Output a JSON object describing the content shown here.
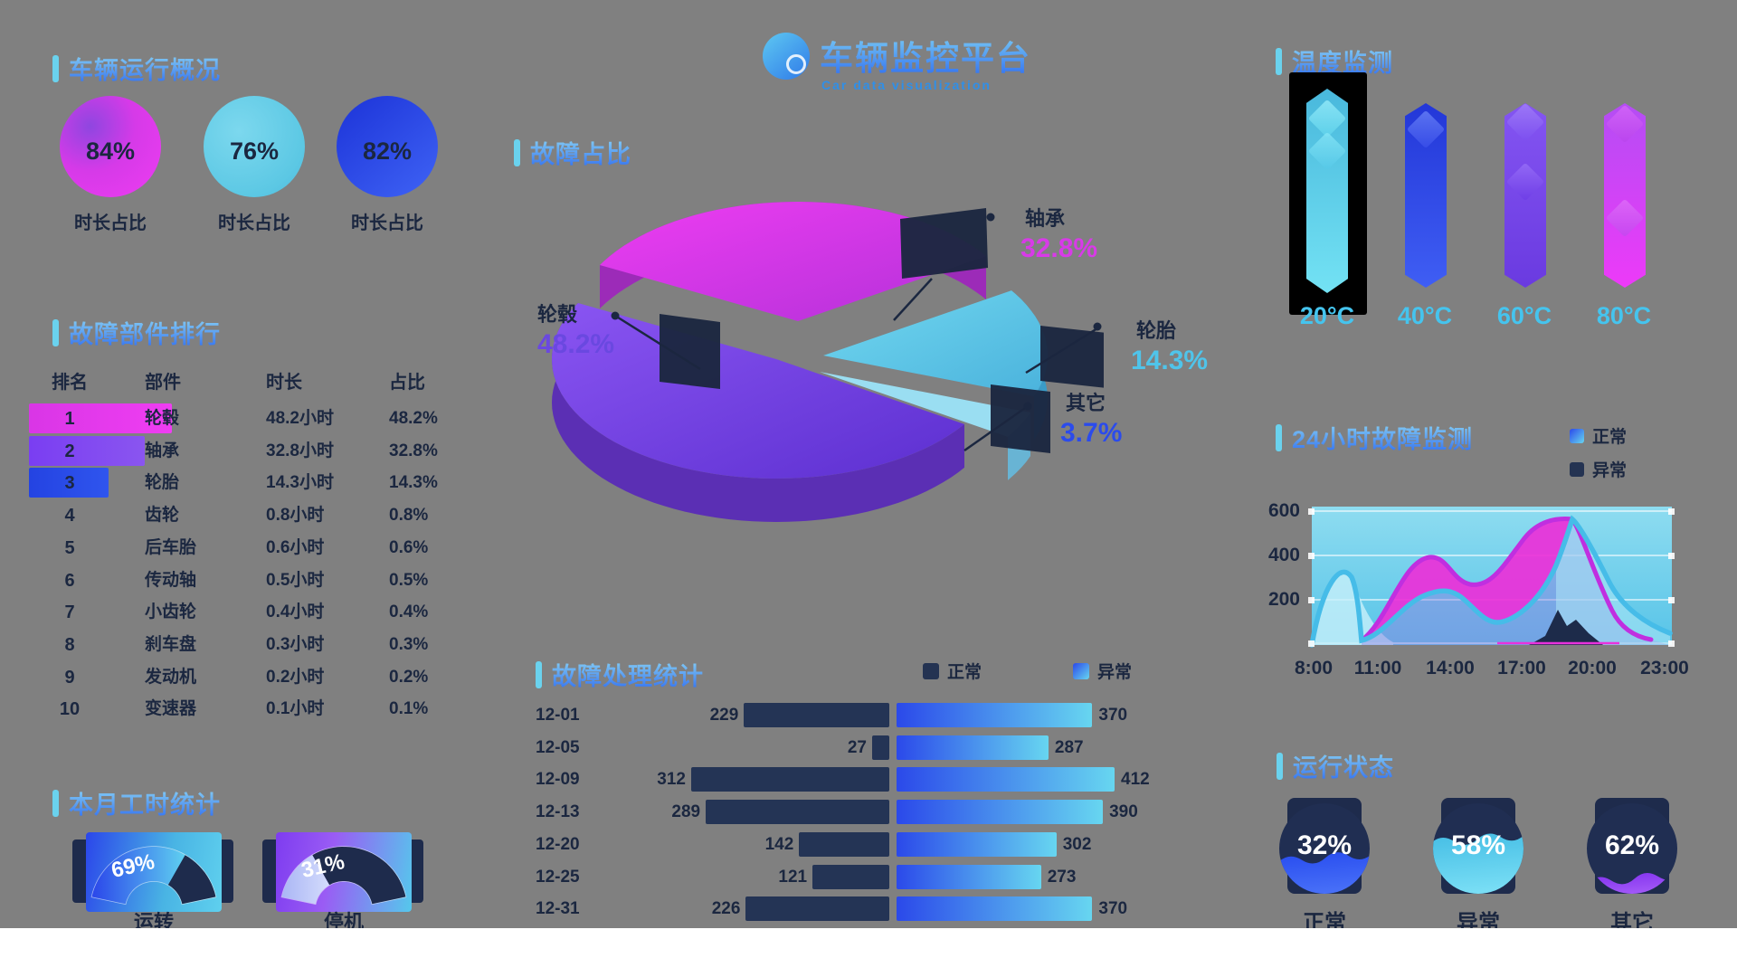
{
  "palette": {
    "bg": "#808080",
    "navy": "#1b2740",
    "cyan": "#5bc9e8",
    "blue": "#2b4bec",
    "purple": "#7a4be0",
    "magenta": "#e13ae8",
    "title_gradient_top": "#8ed8f4",
    "title_gradient_bottom": "#2e6cf0"
  },
  "header": {
    "title": "车辆监控平台",
    "subtitle": "Car data visualization",
    "logo": "car-platform-logo"
  },
  "sections": {
    "overview": "车辆运行概况",
    "rank": "故障部件排行",
    "hours": "本月工时统计",
    "pie": "故障占比",
    "defects": "故障处理统计",
    "temp": "温度监测",
    "trend": "24小时故障监测",
    "status": "运行状态"
  },
  "overview_stats": {
    "items": [
      {
        "value": "84%",
        "label": "时长占比"
      },
      {
        "value": "76%",
        "label": "时长占比"
      },
      {
        "value": "82%",
        "label": "时长占比"
      }
    ]
  },
  "rank_table": {
    "headers": [
      "排名",
      "部件",
      "时长",
      "占比"
    ],
    "rows": [
      {
        "rank": "1",
        "name": "轮毂",
        "time": "48.2小时",
        "pct": "48.2%"
      },
      {
        "rank": "2",
        "name": "轴承",
        "time": "32.8小时",
        "pct": "32.8%"
      },
      {
        "rank": "3",
        "name": "轮胎",
        "time": "14.3小时",
        "pct": "14.3%"
      },
      {
        "rank": "4",
        "name": "齿轮",
        "time": "0.8小时",
        "pct": "0.8%"
      },
      {
        "rank": "5",
        "name": "后车胎",
        "time": "0.6小时",
        "pct": "0.6%"
      },
      {
        "rank": "6",
        "name": "传动轴",
        "time": "0.5小时",
        "pct": "0.5%"
      },
      {
        "rank": "7",
        "name": "小齿轮",
        "time": "0.4小时",
        "pct": "0.4%"
      },
      {
        "rank": "8",
        "name": "刹车盘",
        "time": "0.3小时",
        "pct": "0.3%"
      },
      {
        "rank": "9",
        "name": "发动机",
        "time": "0.2小时",
        "pct": "0.2%"
      },
      {
        "rank": "10",
        "name": "变速器",
        "time": "0.1小时",
        "pct": "0.1%"
      }
    ]
  },
  "hours_gauges": [
    {
      "pct": "69%",
      "label": "运转"
    },
    {
      "pct": "31%",
      "label": "停机"
    }
  ],
  "pie_labels": [
    {
      "name": "轮毂",
      "pct": "48.2%",
      "color": "#6a48e0"
    },
    {
      "name": "轴承",
      "pct": "32.8%",
      "color": "#d83ae8"
    },
    {
      "name": "轮胎",
      "pct": "14.3%",
      "color": "#4fc4ea"
    },
    {
      "name": "其它",
      "pct": "3.7%",
      "color": "#2b4bec"
    }
  ],
  "defect_chart": {
    "legend": [
      "正常",
      "异常"
    ],
    "rows": [
      {
        "date": "12-01",
        "normal": 229,
        "abnormal": 370
      },
      {
        "date": "12-05",
        "normal": 27,
        "abnormal": 287
      },
      {
        "date": "12-09",
        "normal": 312,
        "abnormal": 412
      },
      {
        "date": "12-13",
        "normal": 289,
        "abnormal": 390
      },
      {
        "date": "12-20",
        "normal": 142,
        "abnormal": 302
      },
      {
        "date": "12-25",
        "normal": 121,
        "abnormal": 273
      },
      {
        "date": "12-31",
        "normal": 226,
        "abnormal": 370
      }
    ]
  },
  "temp_chart": {
    "labels": [
      "20°C",
      "40°C",
      "60°C",
      "80°C"
    ],
    "selected": "20°C"
  },
  "trend_chart": {
    "y_ticks": [
      "600",
      "400",
      "200"
    ],
    "x_ticks": [
      "8:00",
      "11:00",
      "14:00",
      "17:00",
      "20:00",
      "23:00"
    ],
    "legend": [
      "正常",
      "异常"
    ]
  },
  "status_liquid": [
    {
      "pct": "32%",
      "label": "正常"
    },
    {
      "pct": "58%",
      "label": "异常"
    },
    {
      "pct": "62%",
      "label": "其它"
    }
  ],
  "chart_data": [
    {
      "type": "pie",
      "title": "故障占比",
      "unit": "%",
      "slices": [
        {
          "label": "轮毂",
          "value": 48.2
        },
        {
          "label": "轴承",
          "value": 32.8
        },
        {
          "label": "轮胎",
          "value": 14.3
        },
        {
          "label": "其它",
          "value": 3.7
        }
      ]
    },
    {
      "type": "bar",
      "title": "故障处理统计",
      "orientation": "horizontal-bidirectional",
      "categories": [
        "12-01",
        "12-05",
        "12-09",
        "12-13",
        "12-20",
        "12-25",
        "12-31"
      ],
      "series": [
        {
          "name": "正常",
          "values": [
            229,
            27,
            312,
            289,
            142,
            121,
            226
          ]
        },
        {
          "name": "异常",
          "values": [
            370,
            287,
            412,
            390,
            302,
            273,
            370
          ]
        }
      ]
    },
    {
      "type": "area",
      "title": "24小时故障监测",
      "ylim": [
        0,
        600
      ],
      "y_ticks": [
        600,
        400,
        200
      ],
      "x_ticks": [
        "8:00",
        "11:00",
        "14:00",
        "17:00",
        "20:00",
        "23:00"
      ],
      "x_hours": [
        8,
        9.5,
        11,
        12.5,
        14,
        15.5,
        17,
        18.5,
        20,
        21.5,
        23
      ],
      "series": [
        {
          "name": "正常",
          "values": [
            0,
            300,
            130,
            150,
            230,
            100,
            240,
            570,
            420,
            210,
            60
          ]
        },
        {
          "name": "异常",
          "values": [
            0,
            60,
            160,
            390,
            270,
            300,
            450,
            570,
            380,
            150,
            30
          ]
        }
      ],
      "note": "values approximate, read from curves"
    },
    {
      "type": "bar",
      "title": "温度监测",
      "categories": [
        "20°C",
        "40°C",
        "60°C",
        "80°C"
      ],
      "values": [
        100,
        100,
        100,
        100
      ],
      "note": "decorative full-height thermometer columns, 20°C highlighted"
    },
    {
      "type": "gauge",
      "title": "本月工时统计",
      "unit": "%",
      "items": [
        {
          "label": "运转",
          "value": 69
        },
        {
          "label": "停机",
          "value": 31
        }
      ]
    },
    {
      "type": "liquid",
      "title": "运行状态",
      "unit": "%",
      "items": [
        {
          "label": "正常",
          "value": 32
        },
        {
          "label": "异常",
          "value": 58
        },
        {
          "label": "其它",
          "value": 62
        }
      ]
    },
    {
      "type": "stat",
      "title": "车辆运行概况",
      "unit": "%",
      "items": [
        {
          "label": "时长占比",
          "value": 84
        },
        {
          "label": "时长占比",
          "value": 76
        },
        {
          "label": "时长占比",
          "value": 82
        }
      ]
    }
  ]
}
